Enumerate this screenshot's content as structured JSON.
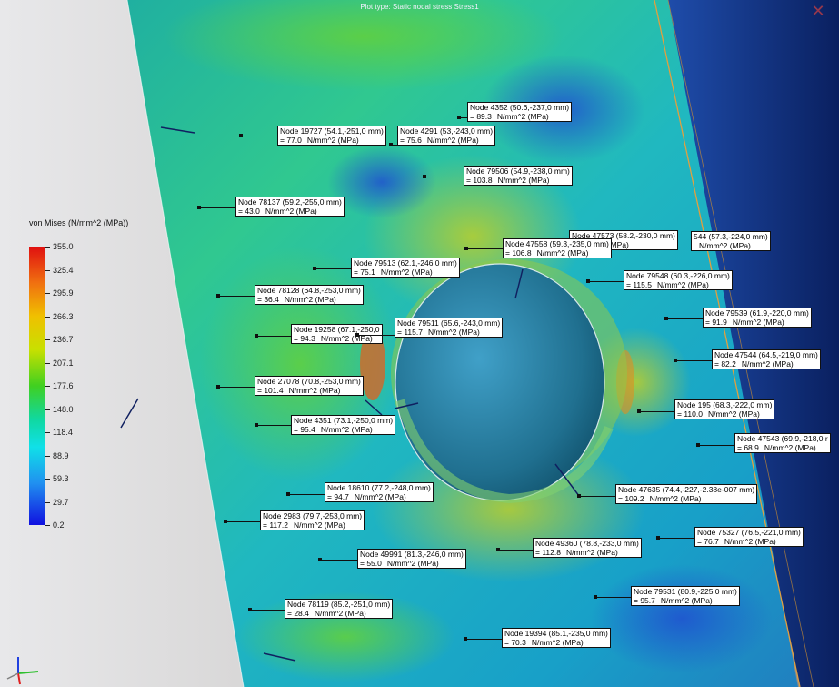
{
  "plot_title": "Plot type: Static nodal stress Stress1",
  "legend": {
    "title": "von Mises (N/mm^2 (MPa))",
    "values": [
      "355.0",
      "325.4",
      "295.9",
      "266.3",
      "236.7",
      "207.1",
      "177.6",
      "148.0",
      "118.4",
      "88.9",
      "59.3",
      "29.7",
      "0.2"
    ],
    "colors": {
      "max": "#e01010",
      "mid": "#40d020",
      "min": "#1010e0"
    }
  },
  "units": "N/mm^2 (MPa)",
  "probes": [
    {
      "node": "Node 4352 (50.6,-237,0 mm)",
      "value": "= 89.3"
    },
    {
      "node": "Node 19727 (54.1,-251,0 mm)",
      "value": "= 77.0"
    },
    {
      "node": "Node 4291 (53,-243,0 mm)",
      "value": "= 75.6"
    },
    {
      "node": "Node 79506 (54.9,-238,0 mm)",
      "value": "= 103.8"
    },
    {
      "node": "Node 78137 (59.2,-255,0 mm)",
      "value": "= 43.0"
    },
    {
      "node": "Node 47573 (58.2,-230,0 mm)",
      "value": ""
    },
    {
      "node": "544 (57.3,-224,0 mm)",
      "value": ""
    },
    {
      "node": "Node 47558 (59.3,-235,0 mm)",
      "value": "= 106.8"
    },
    {
      "node": "Node 79513 (62.1,-246,0 mm)",
      "value": "= 75.1"
    },
    {
      "node": "Node 79548 (60.3,-226,0 mm)",
      "value": "= 115.5"
    },
    {
      "node": "Node 78128 (64.8,-253,0 mm)",
      "value": "= 36.4"
    },
    {
      "node": "Node 79539 (61.9,-220,0 mm)",
      "value": "= 91.9"
    },
    {
      "node": "Node 19258 (67.1,-250,0",
      "value": "= 94.3"
    },
    {
      "node": "Node 79511 (65.6,-243,0 mm)",
      "value": "= 115.7"
    },
    {
      "node": "Node 47544 (64.5,-219,0 mm)",
      "value": "= 82.2"
    },
    {
      "node": "Node 27078 (70.8,-253,0 mm)",
      "value": "= 101.4"
    },
    {
      "node": "Node 195 (68.3,-222,0 mm)",
      "value": "= 110.0"
    },
    {
      "node": "Node 4351 (73.1,-250,0 mm)",
      "value": "= 95.4"
    },
    {
      "node": "Node 47543 (69.9,-218,0 r",
      "value": "= 68.9"
    },
    {
      "node": "Node 18610 (77.2,-248,0 mm)",
      "value": "= 94.7"
    },
    {
      "node": "Node 47635 (74.4,-227,-2.38e-007 mm)",
      "value": "= 109.2"
    },
    {
      "node": "Node 2983 (79.7,-253,0 mm)",
      "value": "= 117.2"
    },
    {
      "node": "Node 75327 (76.5,-221,0 mm)",
      "value": "= 76.7"
    },
    {
      "node": "Node 49991 (81.3,-246,0 mm)",
      "value": "= 55.0"
    },
    {
      "node": "Node 49360 (78.8,-233,0 mm)",
      "value": "= 112.8"
    },
    {
      "node": "Node 79531 (80.9,-225,0 mm)",
      "value": "= 95.7"
    },
    {
      "node": "Node 78119 (85.2,-251,0 mm)",
      "value": "= 28.4"
    },
    {
      "node": "Node 19394 (85.1,-235,0 mm)",
      "value": "= 70.3"
    }
  ]
}
